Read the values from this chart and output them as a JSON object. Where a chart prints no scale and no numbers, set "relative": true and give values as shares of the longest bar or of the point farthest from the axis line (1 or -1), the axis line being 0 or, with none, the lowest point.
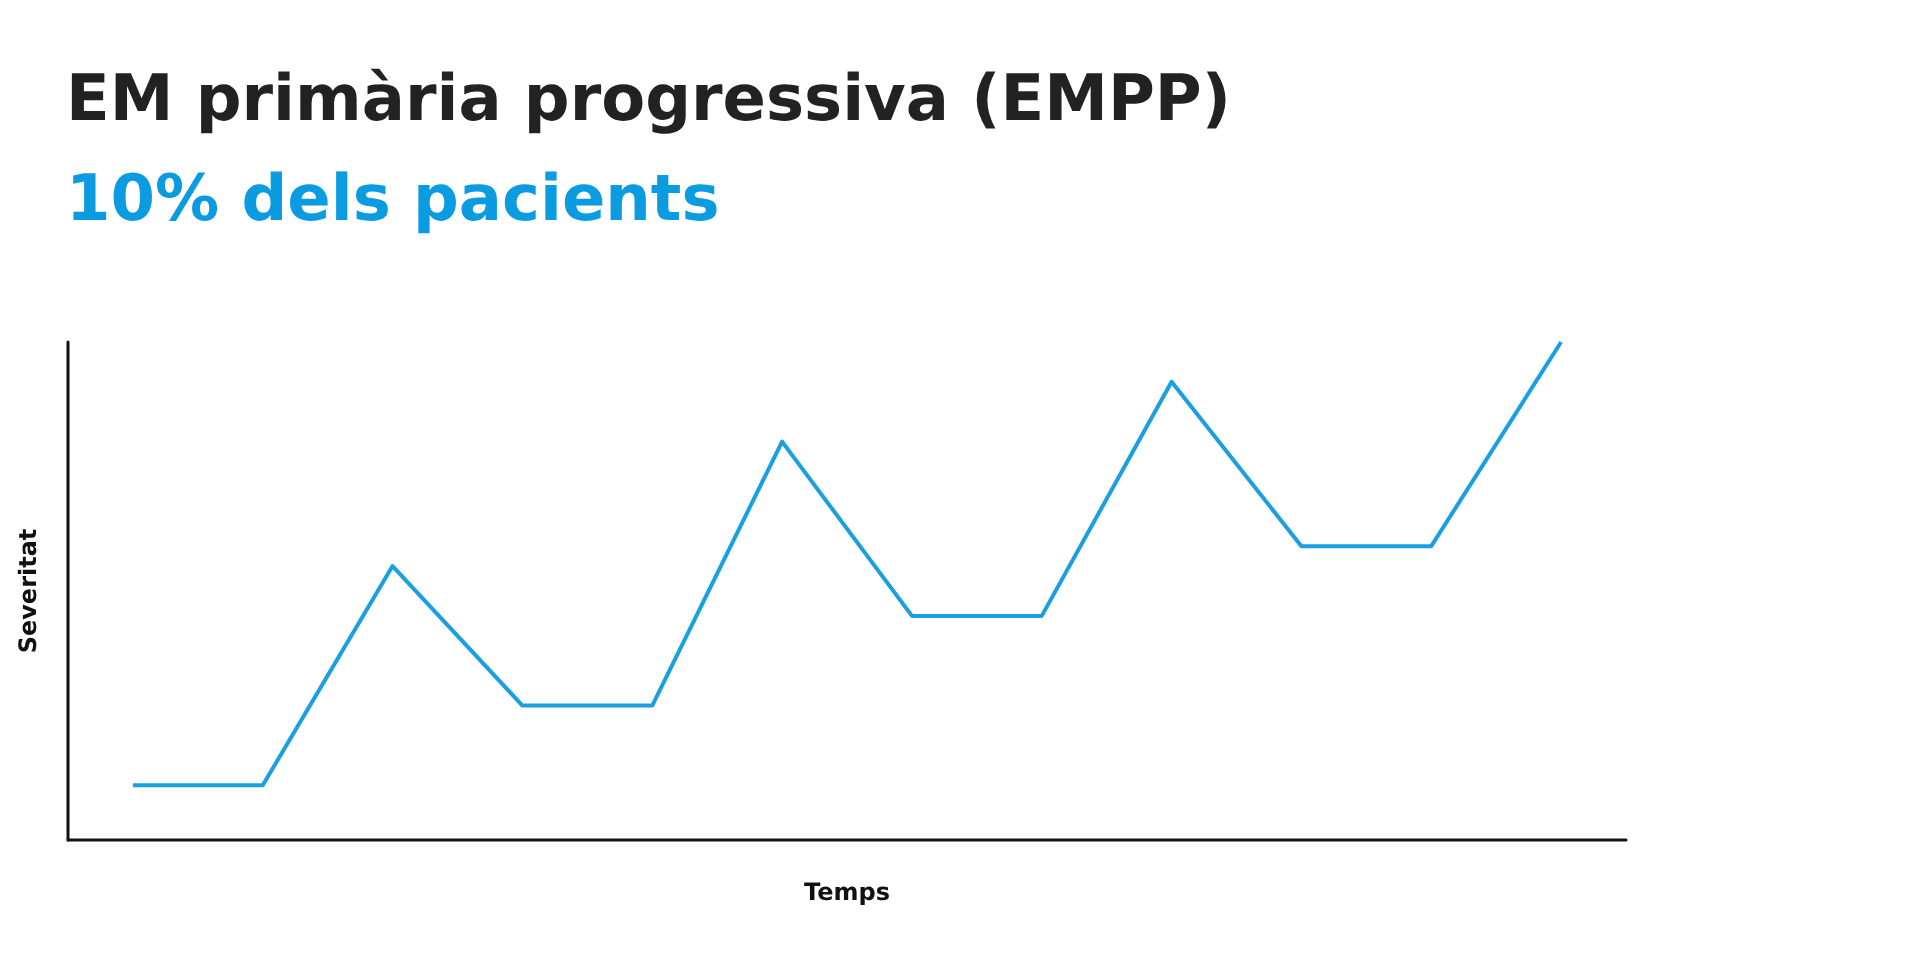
{
  "chart_data": {
    "type": "line",
    "title": "EM primària progressiva (EMPP)",
    "subtitle": "10% dels pacients",
    "xlabel": "Temps",
    "ylabel": "Severitat",
    "relative": true,
    "categories": [
      null,
      null,
      null,
      null,
      null,
      null,
      null,
      null,
      null,
      null,
      null,
      null
    ],
    "series": [
      {
        "color": "#1a9fe0",
        "values": [
          0.11,
          0.11,
          0.55,
          0.27,
          0.27,
          0.8,
          0.45,
          0.45,
          0.92,
          0.59,
          0.59,
          1
        ]
      }
    ],
    "grid": false,
    "marker": "none",
    "line_style": "solid"
  }
}
